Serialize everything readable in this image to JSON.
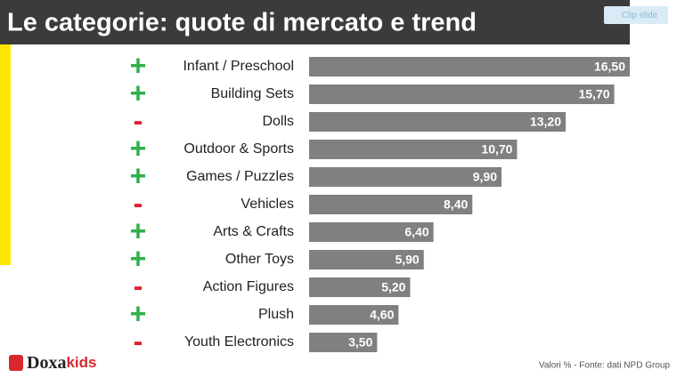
{
  "slide": {
    "clip_button": "Clip slide",
    "source": "Valori % - Fonte: dati NPD Group",
    "logo": {
      "main": "Doxa",
      "accent": "kids"
    }
  },
  "chart_data": {
    "type": "bar",
    "orientation": "horizontal",
    "title": "Le categorie: quote di mercato e trend",
    "categories": [
      "Infant / Preschool",
      "Building Sets",
      "Dolls",
      "Outdoor & Sports",
      "Games / Puzzles",
      "Vehicles",
      "Arts & Crafts",
      "Other Toys",
      "Action Figures",
      "Plush",
      "Youth Electronics"
    ],
    "values": [
      16.5,
      15.7,
      13.2,
      10.7,
      9.9,
      8.4,
      6.4,
      5.9,
      5.2,
      4.6,
      3.5
    ],
    "value_labels": [
      "16,50",
      "15,70",
      "13,20",
      "10,70",
      "9,90",
      "8,40",
      "6,40",
      "5,90",
      "5,20",
      "4,60",
      "3,50"
    ],
    "trends": [
      "+",
      "+",
      "-",
      "+",
      "+",
      "-",
      "+",
      "+",
      "-",
      "+",
      "-"
    ],
    "color": "#808080",
    "trend_colors": {
      "+": "#2eb04b",
      "-": "#e3202f"
    }
  }
}
